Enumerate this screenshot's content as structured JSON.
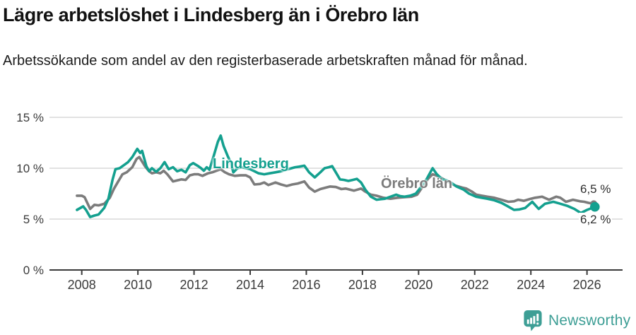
{
  "footer": {
    "brand_name": "Newsworthy",
    "brand_color": "#3d9e95"
  },
  "chart_data": {
    "type": "line",
    "title": "Lägre arbetslöshet i Lindesberg än i Örebro län",
    "subtitle": "Arbetssökande som andel av den registerbaserade arbetskraften månad för månad.",
    "x_axis": {
      "tick_values": [
        2008,
        2010,
        2012,
        2014,
        2016,
        2018,
        2020,
        2022,
        2024,
        2026
      ],
      "tick_labels": [
        "2008",
        "2010",
        "2012",
        "2014",
        "2016",
        "2018",
        "2020",
        "2022",
        "2024",
        "2026"
      ],
      "range": [
        2007.7,
        2026.6
      ]
    },
    "y_axis": {
      "unit": "%",
      "tick_values": [
        0,
        5,
        10,
        15
      ],
      "tick_labels": [
        "0 %",
        "5 %",
        "10 %",
        "15 %"
      ],
      "range": [
        0,
        15.5
      ],
      "grid": true
    },
    "legend": "inline labels at lines",
    "colors": {
      "grid": "#d8d8d8",
      "axis": "#3a3a3a",
      "tick_text": "#3a3a3a"
    },
    "series": [
      {
        "name": "Lindesberg",
        "color": "#14a08f",
        "end_label": "6,2 %",
        "end_value": 6.2,
        "points": [
          [
            2007.83,
            5.9
          ],
          [
            2008.05,
            6.25
          ],
          [
            2008.15,
            5.9
          ],
          [
            2008.3,
            5.2
          ],
          [
            2008.45,
            5.35
          ],
          [
            2008.6,
            5.45
          ],
          [
            2008.8,
            6.1
          ],
          [
            2008.95,
            7.0
          ],
          [
            2009.1,
            8.9
          ],
          [
            2009.2,
            9.9
          ],
          [
            2009.35,
            10.0
          ],
          [
            2009.5,
            10.3
          ],
          [
            2009.65,
            10.6
          ],
          [
            2009.8,
            11.1
          ],
          [
            2009.98,
            11.9
          ],
          [
            2010.08,
            11.5
          ],
          [
            2010.15,
            11.7
          ],
          [
            2010.3,
            10.2
          ],
          [
            2010.4,
            9.7
          ],
          [
            2010.5,
            10.0
          ],
          [
            2010.65,
            9.65
          ],
          [
            2010.8,
            10.0
          ],
          [
            2010.95,
            10.6
          ],
          [
            2011.1,
            9.9
          ],
          [
            2011.25,
            10.1
          ],
          [
            2011.4,
            9.7
          ],
          [
            2011.55,
            9.85
          ],
          [
            2011.7,
            9.6
          ],
          [
            2011.85,
            10.3
          ],
          [
            2011.97,
            10.5
          ],
          [
            2012.15,
            10.2
          ],
          [
            2012.25,
            10.0
          ],
          [
            2012.35,
            9.75
          ],
          [
            2012.45,
            10.1
          ],
          [
            2012.55,
            9.85
          ],
          [
            2012.7,
            11.2
          ],
          [
            2012.85,
            12.6
          ],
          [
            2012.95,
            13.2
          ],
          [
            2013.05,
            12.2
          ],
          [
            2013.2,
            11.2
          ],
          [
            2013.3,
            10.6
          ],
          [
            2013.4,
            9.6
          ],
          [
            2013.55,
            10.0
          ],
          [
            2013.7,
            10.1
          ],
          [
            2013.85,
            10.0
          ],
          [
            2014.0,
            9.9
          ],
          [
            2014.15,
            9.7
          ],
          [
            2014.3,
            9.5
          ],
          [
            2014.5,
            9.4
          ],
          [
            2014.7,
            9.5
          ],
          [
            2014.9,
            9.6
          ],
          [
            2015.1,
            9.7
          ],
          [
            2015.35,
            9.9
          ],
          [
            2015.6,
            10.1
          ],
          [
            2015.75,
            10.15
          ],
          [
            2015.93,
            10.25
          ],
          [
            2016.1,
            9.6
          ],
          [
            2016.3,
            9.1
          ],
          [
            2016.5,
            9.6
          ],
          [
            2016.65,
            10.0
          ],
          [
            2016.8,
            10.1
          ],
          [
            2016.92,
            10.2
          ],
          [
            2017.05,
            9.6
          ],
          [
            2017.2,
            8.9
          ],
          [
            2017.35,
            8.85
          ],
          [
            2017.5,
            8.75
          ],
          [
            2017.65,
            8.85
          ],
          [
            2017.8,
            8.95
          ],
          [
            2017.95,
            8.6
          ],
          [
            2018.1,
            7.9
          ],
          [
            2018.3,
            7.2
          ],
          [
            2018.5,
            6.9
          ],
          [
            2018.65,
            6.95
          ],
          [
            2018.8,
            7.0
          ],
          [
            2019.0,
            7.2
          ],
          [
            2019.2,
            7.4
          ],
          [
            2019.35,
            7.25
          ],
          [
            2019.5,
            7.2
          ],
          [
            2019.7,
            7.3
          ],
          [
            2019.9,
            7.5
          ],
          [
            2020.1,
            8.2
          ],
          [
            2020.3,
            9.0
          ],
          [
            2020.5,
            10.0
          ],
          [
            2020.65,
            9.4
          ],
          [
            2020.85,
            8.9
          ],
          [
            2021.0,
            8.8
          ],
          [
            2021.15,
            8.6
          ],
          [
            2021.35,
            8.2
          ],
          [
            2021.6,
            7.9
          ],
          [
            2021.8,
            7.5
          ],
          [
            2022.05,
            7.2
          ],
          [
            2022.25,
            7.1
          ],
          [
            2022.45,
            7.0
          ],
          [
            2022.7,
            6.85
          ],
          [
            2022.95,
            6.6
          ],
          [
            2023.15,
            6.3
          ],
          [
            2023.4,
            5.9
          ],
          [
            2023.6,
            5.95
          ],
          [
            2023.8,
            6.1
          ],
          [
            2024.05,
            6.7
          ],
          [
            2024.28,
            6.0
          ],
          [
            2024.5,
            6.5
          ],
          [
            2024.8,
            6.7
          ],
          [
            2025.0,
            6.55
          ],
          [
            2025.3,
            6.3
          ],
          [
            2025.55,
            6.0
          ],
          [
            2025.78,
            5.6
          ],
          [
            2026.0,
            5.9
          ],
          [
            2026.28,
            6.2
          ]
        ]
      },
      {
        "name": "Örebro län",
        "color": "#7c7c7c",
        "end_label": "6,5 %",
        "end_value": 6.5,
        "points": [
          [
            2007.83,
            7.3
          ],
          [
            2008.0,
            7.3
          ],
          [
            2008.1,
            7.15
          ],
          [
            2008.3,
            6.0
          ],
          [
            2008.45,
            6.4
          ],
          [
            2008.6,
            6.35
          ],
          [
            2008.8,
            6.5
          ],
          [
            2009.0,
            7.1
          ],
          [
            2009.15,
            8.0
          ],
          [
            2009.3,
            8.7
          ],
          [
            2009.45,
            9.4
          ],
          [
            2009.6,
            9.6
          ],
          [
            2009.8,
            10.1
          ],
          [
            2009.95,
            10.9
          ],
          [
            2010.05,
            11.1
          ],
          [
            2010.25,
            10.2
          ],
          [
            2010.4,
            9.7
          ],
          [
            2010.5,
            9.5
          ],
          [
            2010.65,
            9.6
          ],
          [
            2010.8,
            9.5
          ],
          [
            2010.92,
            9.75
          ],
          [
            2011.05,
            9.4
          ],
          [
            2011.25,
            8.7
          ],
          [
            2011.4,
            8.8
          ],
          [
            2011.55,
            8.9
          ],
          [
            2011.7,
            8.85
          ],
          [
            2011.85,
            9.3
          ],
          [
            2012.0,
            9.4
          ],
          [
            2012.15,
            9.4
          ],
          [
            2012.3,
            9.25
          ],
          [
            2012.5,
            9.5
          ],
          [
            2012.65,
            9.6
          ],
          [
            2012.8,
            9.75
          ],
          [
            2012.95,
            9.9
          ],
          [
            2013.1,
            9.6
          ],
          [
            2013.25,
            9.4
          ],
          [
            2013.45,
            9.25
          ],
          [
            2013.65,
            9.3
          ],
          [
            2013.85,
            9.3
          ],
          [
            2014.0,
            9.1
          ],
          [
            2014.15,
            8.4
          ],
          [
            2014.35,
            8.45
          ],
          [
            2014.5,
            8.6
          ],
          [
            2014.65,
            8.35
          ],
          [
            2014.9,
            8.6
          ],
          [
            2015.1,
            8.4
          ],
          [
            2015.3,
            8.25
          ],
          [
            2015.5,
            8.4
          ],
          [
            2015.7,
            8.5
          ],
          [
            2015.93,
            8.7
          ],
          [
            2016.1,
            8.1
          ],
          [
            2016.3,
            7.7
          ],
          [
            2016.5,
            7.95
          ],
          [
            2016.7,
            8.1
          ],
          [
            2016.85,
            8.2
          ],
          [
            2017.05,
            8.15
          ],
          [
            2017.25,
            7.95
          ],
          [
            2017.4,
            8.0
          ],
          [
            2017.55,
            7.9
          ],
          [
            2017.7,
            7.8
          ],
          [
            2017.95,
            8.0
          ],
          [
            2018.1,
            7.7
          ],
          [
            2018.3,
            7.4
          ],
          [
            2018.5,
            7.3
          ],
          [
            2018.75,
            7.1
          ],
          [
            2019.0,
            7.0
          ],
          [
            2019.25,
            7.1
          ],
          [
            2019.5,
            7.15
          ],
          [
            2019.75,
            7.2
          ],
          [
            2019.95,
            7.4
          ],
          [
            2020.15,
            8.2
          ],
          [
            2020.35,
            9.0
          ],
          [
            2020.5,
            9.4
          ],
          [
            2020.7,
            9.2
          ],
          [
            2020.9,
            8.9
          ],
          [
            2021.1,
            8.6
          ],
          [
            2021.3,
            8.3
          ],
          [
            2021.55,
            8.1
          ],
          [
            2021.7,
            8.0
          ],
          [
            2021.9,
            7.7
          ],
          [
            2022.05,
            7.4
          ],
          [
            2022.25,
            7.3
          ],
          [
            2022.45,
            7.2
          ],
          [
            2022.7,
            7.1
          ],
          [
            2022.95,
            6.9
          ],
          [
            2023.2,
            6.7
          ],
          [
            2023.4,
            6.75
          ],
          [
            2023.55,
            6.9
          ],
          [
            2023.75,
            6.8
          ],
          [
            2024.0,
            7.0
          ],
          [
            2024.15,
            7.1
          ],
          [
            2024.4,
            7.2
          ],
          [
            2024.65,
            6.9
          ],
          [
            2024.9,
            7.2
          ],
          [
            2025.05,
            7.1
          ],
          [
            2025.25,
            6.7
          ],
          [
            2025.5,
            6.9
          ],
          [
            2025.75,
            6.75
          ],
          [
            2025.9,
            6.7
          ],
          [
            2026.05,
            6.6
          ],
          [
            2026.24,
            6.5
          ]
        ]
      }
    ]
  }
}
